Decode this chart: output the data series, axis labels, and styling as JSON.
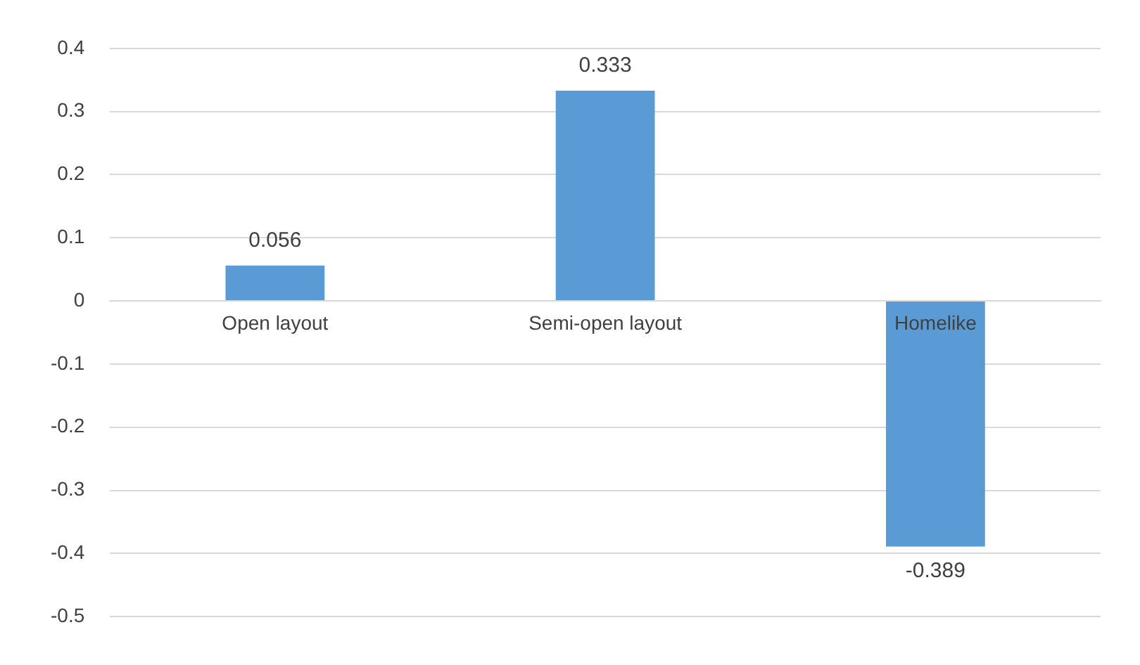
{
  "chart_data": {
    "type": "bar",
    "categories": [
      "Open layout",
      "Semi-open layout",
      "Homelike"
    ],
    "values": [
      0.056,
      0.333,
      -0.389
    ],
    "color": "#5b9bd5",
    "ylim": [
      -0.5,
      0.4
    ],
    "yticks": [
      -0.5,
      -0.4,
      -0.3,
      -0.2,
      -0.1,
      0,
      0.1,
      0.2,
      0.3,
      0.4
    ],
    "grid": "y",
    "data_labels": true
  }
}
